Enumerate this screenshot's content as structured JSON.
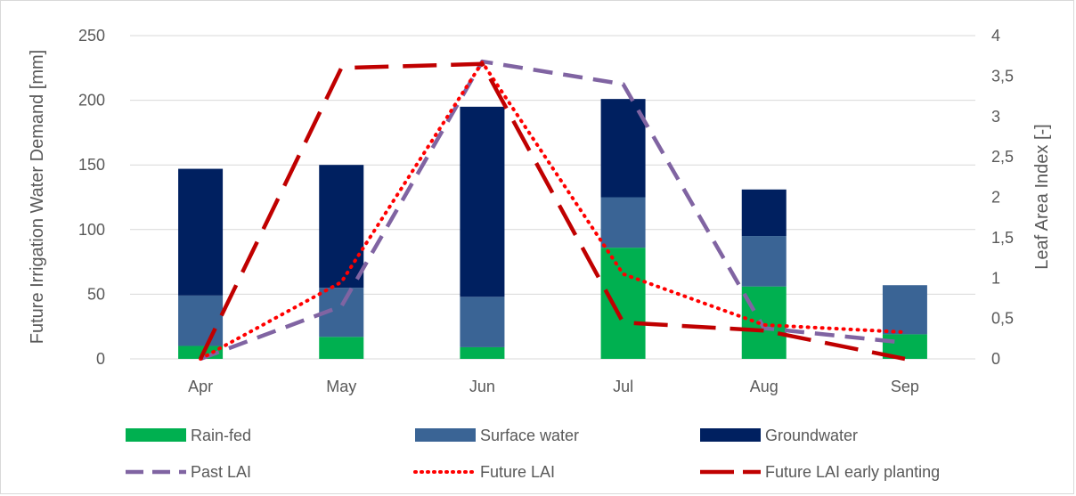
{
  "chart_data": {
    "type": "bar",
    "stacked": true,
    "categories": [
      "Apr",
      "May",
      "Jun",
      "Jul",
      "Aug",
      "Sep"
    ],
    "ylabel": "Future Irrigation Water Demand [mm]",
    "ylim": [
      0,
      250
    ],
    "yticks": [
      "0",
      "50",
      "100",
      "150",
      "200",
      "250"
    ],
    "y2label": "Leaf Area Index [-]",
    "y2lim": [
      0,
      4
    ],
    "y2ticks": [
      "0",
      "0,5",
      "1",
      "1,5",
      "2",
      "2,5",
      "3",
      "3,5",
      "4"
    ],
    "grid": true,
    "legend_position": "bottom",
    "bar_series": [
      {
        "name": "Rain-fed",
        "color": "#00b050",
        "values": [
          10,
          17,
          9,
          86,
          56,
          19
        ]
      },
      {
        "name": "Surface water",
        "color": "#3a6495",
        "values": [
          39,
          38,
          39,
          39,
          39,
          38
        ]
      },
      {
        "name": "Groundwater",
        "color": "#002060",
        "values": [
          98,
          95,
          147,
          76,
          36,
          0
        ]
      }
    ],
    "line_series": [
      {
        "name": "Past LAI",
        "color": "#8064a2",
        "style": "dash",
        "axis": "secondary",
        "values": [
          0.0,
          0.65,
          3.68,
          3.4,
          0.38,
          0.2
        ]
      },
      {
        "name": "Future LAI",
        "color": "#ff0000",
        "style": "dot",
        "axis": "secondary",
        "values": [
          0.0,
          0.95,
          3.67,
          1.05,
          0.42,
          0.33
        ]
      },
      {
        "name": "Future LAI early planting",
        "color": "#c00000",
        "style": "longdash",
        "axis": "secondary",
        "values": [
          0.0,
          3.6,
          3.65,
          0.45,
          0.35,
          0.0
        ]
      }
    ]
  }
}
